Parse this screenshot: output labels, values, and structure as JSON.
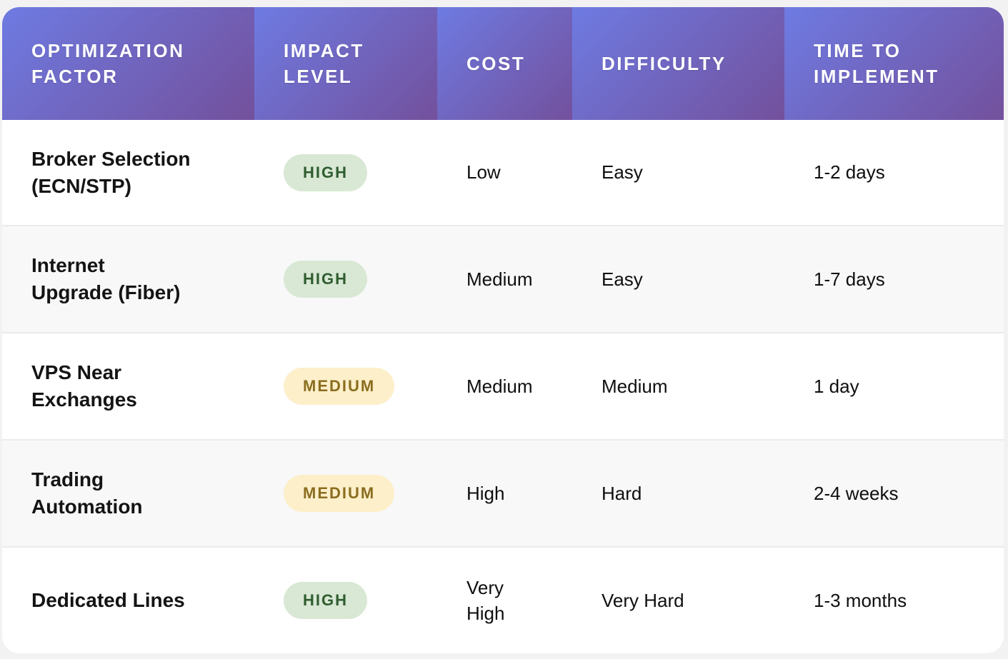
{
  "table": {
    "columns": [
      {
        "id": "optimization-factor",
        "label": "OPTIMIZATION FACTOR"
      },
      {
        "id": "impact-level",
        "label": "IMPACT LEVEL"
      },
      {
        "id": "cost",
        "label": "COST"
      },
      {
        "id": "difficulty",
        "label": "DIFFICULTY"
      },
      {
        "id": "time-to-implement",
        "label": "TIME TO IMPLEMENT"
      }
    ],
    "rows": [
      {
        "factor": "Broker Selection\n(ECN/STP)",
        "impact": "HIGH",
        "impact_level": "high",
        "cost": "Low",
        "difficulty": "Easy",
        "time": "1-2 days"
      },
      {
        "factor": "Internet\nUpgrade (Fiber)",
        "impact": "HIGH",
        "impact_level": "high",
        "cost": "Medium",
        "difficulty": "Easy",
        "time": "1-7 days"
      },
      {
        "factor": "VPS Near\nExchanges",
        "impact": "MEDIUM",
        "impact_level": "medium",
        "cost": "Medium",
        "difficulty": "Medium",
        "time": "1 day"
      },
      {
        "factor": "Trading\nAutomation",
        "impact": "MEDIUM",
        "impact_level": "medium",
        "cost": "High",
        "difficulty": "Hard",
        "time": "2-4 weeks"
      },
      {
        "factor": "Dedicated Lines",
        "impact": "HIGH",
        "impact_level": "high",
        "cost": "Very\nHigh",
        "difficulty": "Very Hard",
        "time": "1-3 months"
      }
    ]
  },
  "impact_styles": {
    "high": {
      "bg": "#d8e8d4",
      "text": "#2f5c30"
    },
    "medium": {
      "bg": "#fcefca",
      "text": "#8b6d1f"
    }
  },
  "colors": {
    "header_gradient_start": "#6e7be2",
    "header_gradient_end": "#73509c",
    "page_background": "#f2f2f3",
    "card_background": "#ffffff",
    "alt_row_background": "#f8f8f9",
    "row_separator": "#ebebeb"
  }
}
